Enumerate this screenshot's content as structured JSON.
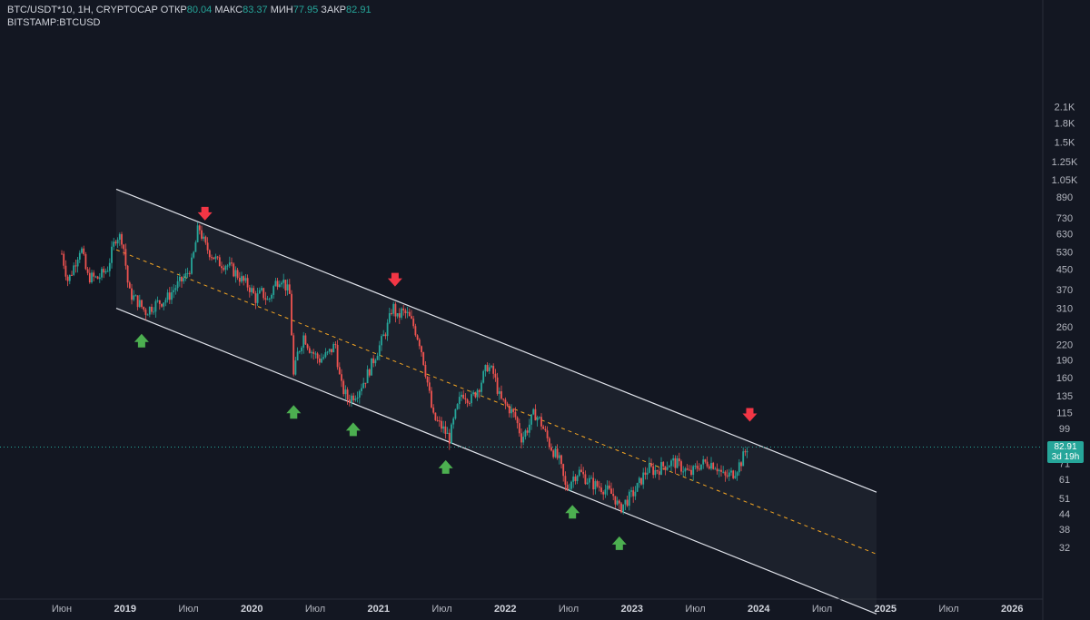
{
  "header": {
    "symbol": "BTC/USDT*10, 1H, CRYPTOCAP",
    "open_label": "ОТКР",
    "open_value": "80.04",
    "high_label": "МАКС",
    "high_value": "83.37",
    "low_label": "МИН",
    "low_value": "77.95",
    "close_label": "ЗАКР",
    "close_value": "82.91",
    "compare_symbol": "BITSTAMP:BTCUSD"
  },
  "last_price": {
    "value": "82.91",
    "countdown": "3d 19h"
  },
  "colors": {
    "background": "#131722",
    "up_candle": "#26a69a",
    "down_candle": "#ef5350",
    "channel_line": "#e0e3eb",
    "mid_line": "#f5a623",
    "arrow_up": "#4caf50",
    "arrow_down": "#f23645"
  },
  "chart_data": {
    "type": "candlestick",
    "y_scale": "log",
    "ylim": [
      28,
      2200
    ],
    "y_ticks": [
      "2.1K",
      "1.8K",
      "1.5K",
      "1.25K",
      "1.05K",
      "890",
      "730",
      "630",
      "530",
      "450",
      "370",
      "310",
      "260",
      "220",
      "190",
      "160",
      "135",
      "115",
      "99",
      "71",
      "61",
      "51",
      "44",
      "38",
      "32"
    ],
    "x_ticks": [
      {
        "label": "Июн",
        "bold": false
      },
      {
        "label": "2019",
        "bold": true
      },
      {
        "label": "Июл",
        "bold": false
      },
      {
        "label": "2020",
        "bold": true
      },
      {
        "label": "Июл",
        "bold": false
      },
      {
        "label": "2021",
        "bold": true
      },
      {
        "label": "Июл",
        "bold": false
      },
      {
        "label": "2022",
        "bold": true
      },
      {
        "label": "Июл",
        "bold": false
      },
      {
        "label": "2023",
        "bold": true
      },
      {
        "label": "Июл",
        "bold": false
      },
      {
        "label": "2024",
        "bold": true
      },
      {
        "label": "Июл",
        "bold": false
      },
      {
        "label": "2025",
        "bold": true
      },
      {
        "label": "Июл",
        "bold": false
      },
      {
        "label": "2026",
        "bold": true
      }
    ],
    "series_path": [
      [
        2018.42,
        520
      ],
      [
        2018.47,
        400
      ],
      [
        2018.52,
        470
      ],
      [
        2018.57,
        560
      ],
      [
        2018.62,
        420
      ],
      [
        2018.7,
        410
      ],
      [
        2018.78,
        450
      ],
      [
        2018.85,
        620
      ],
      [
        2018.9,
        600
      ],
      [
        2018.95,
        360
      ],
      [
        2019.02,
        330
      ],
      [
        2019.08,
        300
      ],
      [
        2019.15,
        320
      ],
      [
        2019.25,
        340
      ],
      [
        2019.32,
        380
      ],
      [
        2019.4,
        420
      ],
      [
        2019.45,
        480
      ],
      [
        2019.5,
        680
      ],
      [
        2019.55,
        560
      ],
      [
        2019.6,
        520
      ],
      [
        2019.65,
        480
      ],
      [
        2019.72,
        470
      ],
      [
        2019.8,
        430
      ],
      [
        2019.85,
        400
      ],
      [
        2019.9,
        380
      ],
      [
        2019.95,
        340
      ],
      [
        2020.0,
        360
      ],
      [
        2020.05,
        330
      ],
      [
        2020.1,
        390
      ],
      [
        2020.15,
        420
      ],
      [
        2020.22,
        350
      ],
      [
        2020.25,
        160
      ],
      [
        2020.28,
        200
      ],
      [
        2020.33,
        240
      ],
      [
        2020.38,
        210
      ],
      [
        2020.45,
        190
      ],
      [
        2020.52,
        200
      ],
      [
        2020.58,
        220
      ],
      [
        2020.62,
        150
      ],
      [
        2020.68,
        130
      ],
      [
        2020.75,
        140
      ],
      [
        2020.82,
        160
      ],
      [
        2020.88,
        190
      ],
      [
        2020.95,
        230
      ],
      [
        2021.0,
        270
      ],
      [
        2021.03,
        320
      ],
      [
        2021.07,
        280
      ],
      [
        2021.1,
        300
      ],
      [
        2021.15,
        290
      ],
      [
        2021.2,
        260
      ],
      [
        2021.25,
        220
      ],
      [
        2021.3,
        160
      ],
      [
        2021.35,
        110
      ],
      [
        2021.42,
        100
      ],
      [
        2021.48,
        90
      ],
      [
        2021.52,
        110
      ],
      [
        2021.58,
        140
      ],
      [
        2021.65,
        130
      ],
      [
        2021.72,
        150
      ],
      [
        2021.78,
        180
      ],
      [
        2021.83,
        165
      ],
      [
        2021.88,
        130
      ],
      [
        2021.95,
        120
      ],
      [
        2022.0,
        110
      ],
      [
        2022.05,
        90
      ],
      [
        2022.1,
        100
      ],
      [
        2022.15,
        115
      ],
      [
        2022.2,
        105
      ],
      [
        2022.27,
        85
      ],
      [
        2022.35,
        72
      ],
      [
        2022.4,
        55
      ],
      [
        2022.45,
        62
      ],
      [
        2022.5,
        66
      ],
      [
        2022.55,
        62
      ],
      [
        2022.62,
        58
      ],
      [
        2022.7,
        56
      ],
      [
        2022.78,
        52
      ],
      [
        2022.82,
        46
      ],
      [
        2022.88,
        50
      ],
      [
        2022.95,
        55
      ],
      [
        2023.0,
        62
      ],
      [
        2023.05,
        68
      ],
      [
        2023.1,
        66
      ],
      [
        2023.18,
        70
      ],
      [
        2023.25,
        72
      ],
      [
        2023.32,
        68
      ],
      [
        2023.38,
        64
      ],
      [
        2023.45,
        70
      ],
      [
        2023.52,
        72
      ],
      [
        2023.58,
        70
      ],
      [
        2023.65,
        62
      ],
      [
        2023.72,
        65
      ],
      [
        2023.78,
        72
      ],
      [
        2023.83,
        82.91
      ]
    ],
    "channel": {
      "upper": {
        "start": [
          2018.85,
          960
        ],
        "end": [
          2024.85,
          54
        ]
      },
      "lower": {
        "start": [
          2018.85,
          310
        ],
        "end": [
          2024.85,
          17
        ]
      },
      "middle_dashed": {
        "start": [
          2018.85,
          540
        ],
        "end": [
          2024.85,
          30
        ]
      }
    },
    "markers": [
      {
        "type": "down",
        "date": 2019.55
      },
      {
        "type": "up",
        "date": 2019.05
      },
      {
        "type": "down",
        "date": 2021.05
      },
      {
        "type": "up",
        "date": 2020.25
      },
      {
        "type": "up",
        "date": 2020.72
      },
      {
        "type": "up",
        "date": 2021.45
      },
      {
        "type": "up",
        "date": 2022.45
      },
      {
        "type": "up",
        "date": 2022.82
      },
      {
        "type": "down",
        "date": 2023.85
      }
    ]
  }
}
